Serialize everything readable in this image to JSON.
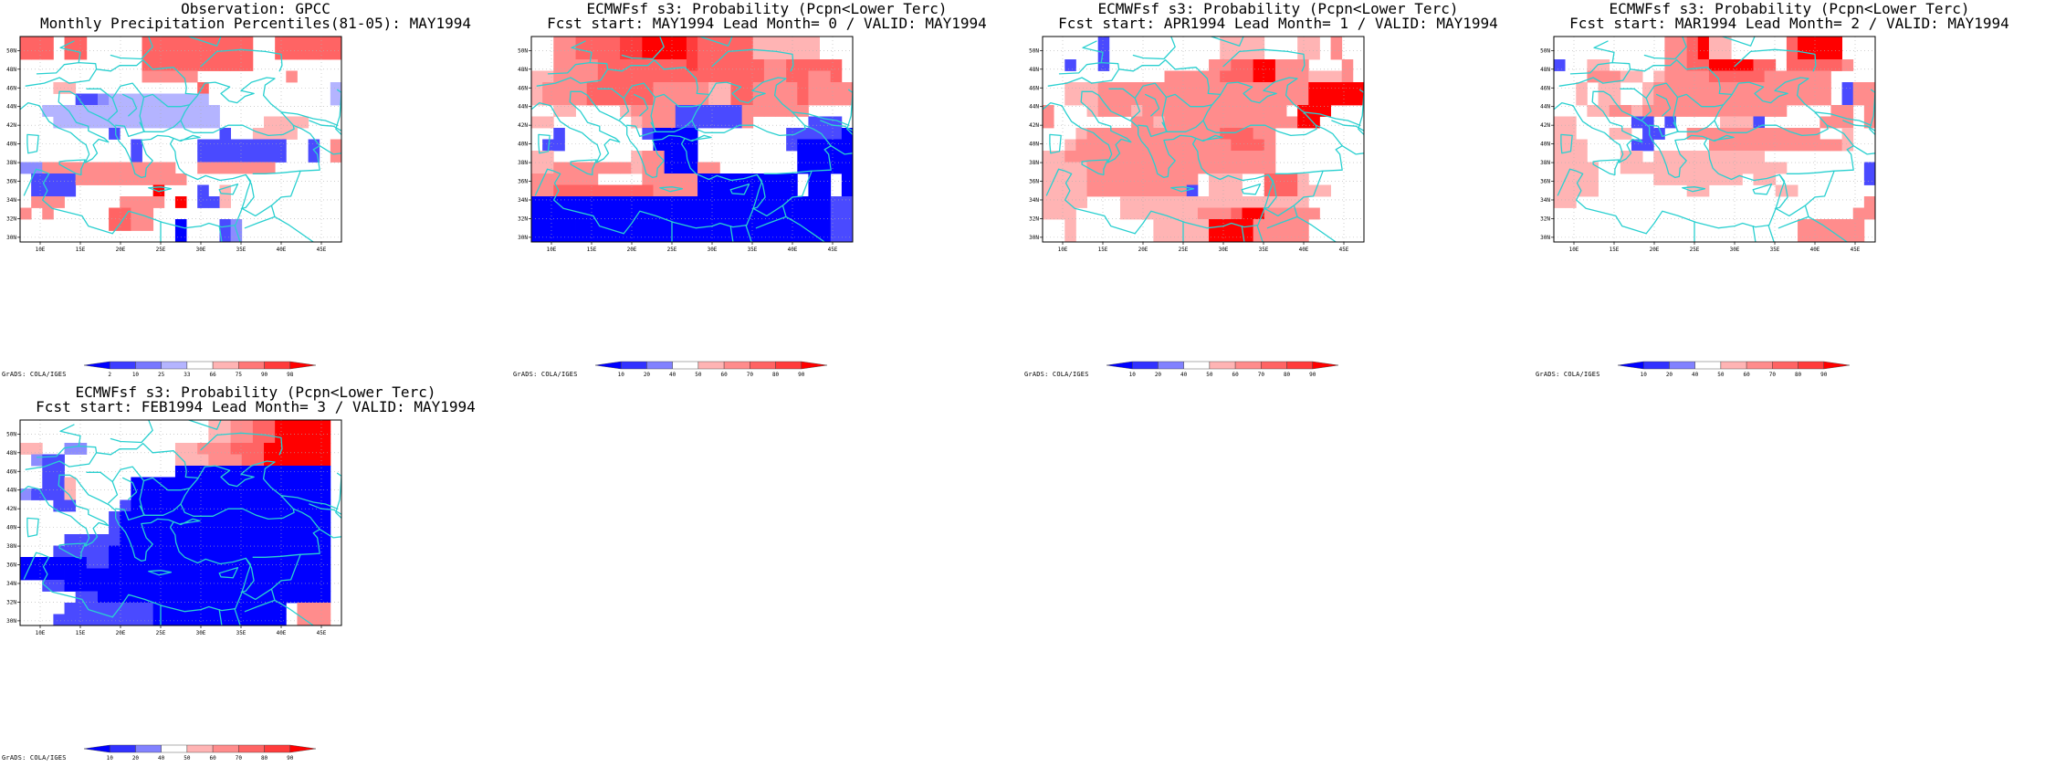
{
  "panels": [
    {
      "id": "obs",
      "title1": "Observation: GPCC",
      "title2": "Monthly Precipitation Percentiles(81-05): MAY1994",
      "scale": "percentile"
    },
    {
      "id": "lead0",
      "title1": "ECMWFsf s3: Probability (Pcpn<Lower Terc)",
      "title2": "Fcst start: MAY1994  Lead Month= 0 / VALID: MAY1994",
      "scale": "probability"
    },
    {
      "id": "lead1",
      "title1": "ECMWFsf s3: Probability (Pcpn<Lower Terc)",
      "title2": "Fcst start: APR1994  Lead Month= 1 / VALID: MAY1994",
      "scale": "probability"
    },
    {
      "id": "lead2",
      "title1": "ECMWFsf s3: Probability (Pcpn<Lower Terc)",
      "title2": "Fcst start: MAR1994  Lead Month= 2 / VALID: MAY1994",
      "scale": "probability"
    },
    {
      "id": "lead3",
      "title1": "ECMWFsf s3: Probability (Pcpn<Lower Terc)",
      "title2": "Fcst start: FEB1994  Lead Month= 3 / VALID: MAY1994",
      "scale": "probability"
    }
  ],
  "credit": "GrADS: COLA/IGES",
  "map": {
    "lon_range": [
      7.5,
      47.5
    ],
    "lat_range": [
      29.5,
      51.5
    ],
    "lon_ticks": [
      "10E",
      "15E",
      "20E",
      "25E",
      "30E",
      "35E",
      "40E",
      "45E"
    ],
    "lat_ticks": [
      "30N",
      "32N",
      "34N",
      "36N",
      "38N",
      "40N",
      "42N",
      "44N",
      "46N",
      "48N",
      "50N"
    ],
    "grid_lines": "dotted"
  },
  "colorbars": {
    "percentile": {
      "labels": [
        "2",
        "10",
        "25",
        "33",
        "66",
        "75",
        "90",
        "98"
      ],
      "colors": [
        "#0000ff",
        "#3c3cff",
        "#7878ff",
        "#b4b4ff",
        "#ffffff",
        "#ffb4b4",
        "#ff7878",
        "#ff3c3c",
        "#ff0000"
      ]
    },
    "probability": {
      "labels": [
        "10",
        "20",
        "40",
        "50",
        "60",
        "70",
        "80",
        "90"
      ],
      "colors": [
        "#0000ff",
        "#3232ff",
        "#8282ff",
        "#ffffff",
        "#ffb4b4",
        "#ff8c8c",
        "#ff6464",
        "#ff3c3c",
        "#ff0000"
      ]
    }
  },
  "colors": {
    "coast": "#2ad0d0",
    "grid": "#b0b0b0"
  },
  "cell_colors": {
    "B": "#0000ff",
    "b": "#4a4aff",
    "l": "#8c8cff",
    "v": "#b4b4ff",
    ".": "#ffffff",
    "p": "#ffb4b4",
    "q": "#ff8c8c",
    "r": "#ff6464",
    "s": "#ff3c3c",
    "R": "#ff0000"
  },
  "grids": {
    "obs": [
      "rrr.rr.....rrrrrrrrrr..rrrrrr",
      "rrr.rr.....rrrrrrrrrr..rrrrrr",
      "...........rrrrrrrrrr........",
      "...........qqqqq........q....",
      "...pp...........r...........v",
      ".....bblvvvvvvvvv...........v",
      "..vvvvvvvvvvvvvvvv..........",
      "...vvvvvvvvvvvvvvv....pppp...",
      "........b.........b..pppp....",
      "..........b.....bbbbbbbb..b.q",
      "..........b.....bbbbbbbb..b.q",
      "llqqqqqqqqqqqq..qqqqqqq......",
      ".bbbbqqqqqqqqqq..............",
      ".bbbb.......R...b.p..........",
      ".qqq.....qqqq.R.bbp..........",
      "q.q.....rrqq.................",
      "........rrqq..B...bl.........",
      "..............B...bl........."
    ],
    "lead0": [
      "..qqrrrrssRRRRsrrrrrpppppp...",
      "..qqrrrrssRRRRsrrrrrpppppp...",
      "..qqqqrrrrrrrrsrrrrrrqqrrrrr.",
      "ppqqqqrrrrrrrrrrrrrrrqqrrqqr.",
      "pqqqqrrrrrrqqqqqpprrqqqqrqqqq",
      "pqqqqrrrrrrqqqqqpprrqqqqrqqqq",
      "..pp....pqqqqbbbbbbqqqqqq....",
      "pp.......pqqqbbbbbbq.....bbb.",
      "..b.......bBBBB........bbbbbB",
      ".bb........BBBB........bBBBBB",
      "pp.......pqqBBB.........BBBBB",
      "ppqqqqqqqpqqBBBqq.......BBBBB",
      "qqqqqq....qqqqqBBBBBBBBB.BB.B",
      "qqrrrrrrrrrqqqqBBBBBBBBB.BB.B",
      "BBBBBBBBBBBBBBBBBBBBBBBBBBBbb",
      "BBBBBBBBBBBBBBBBBBBBBBBBBBBbb",
      "BBBBBBBBBBBBBBBBBBBBBBBBBBBbb",
      "BBBBBBBBBBBBBBBBBBBBBBBBBBBbb"
    ],
    "lead1": [
      ".....b..........pppp...pp.q..",
      ".....b..........pppp...pp.q..",
      "..b..b.........qqrrRRqqq...q.",
      "...........qqqqqrrrRRqqqpppq.",
      "..pppqqqqqqqqqqqqqqqqqqqRRRRR",
      "..pppqqqqqqqqqqqqqqqqqqqRRRRR",
      "q...pqqqpqqqqqqqqqqqqq.RRR...",
      "q.......qqpqqqqqqqqqqqqRR....",
      "...pqqqqqqqqqqqqrrrqq.......",
      "..pqqqqqqqqqqqqqqrrrq.......",
      "ppqqqqqqqqqqqqqqqqqqq.......",
      "ppppqqqqqqqqqqqqqqqqq.......",
      "ppppqqqqqqqqqq.ppp..rrrp....",
      "ppppqqqqqqqqqb.ppp..rrrppp..",
      "pppp...ppppppppppppppppp.....",
      "ppp....pppppppqqqrRRqqqqq....",
      "..p.......pppppRRRRqqqqq.....",
      "..p.......pppppRRRRqqqqq....."
    ],
    "lead2": [
      "..........qqrRpp.....rRRRR...",
      "..........qqrRpp.....rRRRR...",
      "b..pp.....qqrrRRRRrr.rrrrrq..",
      "...qqqpp.pqqqqrrrrrqqqqqq....",
      "..p.pp..pqqqqqqqqqqqqqqqq.bqq",
      "..p.pp..pqqqqqqqqqqqqqqqq.bqq",
      "...ppqqpqqqqqqqqqqqqq....qq.q",
      "pp.....bb.b....pppb.....qqq.q",
      "pp...pp.bb..qqqqqqqqqqqq..p.",
      "ppp....bb.....qqqqqqqqqqqqp..",
      "ppp...pp.pppppppppp..........",
      "pppp..ppppppppppppppp.......b",
      "pppp.....pppppppp.pp........b",
      "pppp........pp......pp.......",
      "pp..........................q",
      "...........................qq",
      "......................qqqqqq",
      "......................qqqqqq"
    ],
    "lead3": [
      ".................ppqqrrRRRRR.",
      ".................ppqqrrRRRRR.",
      "pp..ll........ppqqqrrrRRRRRR",
      ".lbb..........pppqqqrrRRRRRR",
      "..bb..........BBBBBBBBBBBBBB",
      "..bbp.....BBBBBBBBBBBBBBBBBB",
      "lbbbp.....BBBBBBBBBBBBBBBBBB",
      "...bb....bBBBBBBBBBBBBBBBBBB",
      "........bBBBBBBBBBBBBBBBBBBB",
      "........bBBBBBBBBBBBBBBBBBBB",
      "....bbbbbBBBBBBBBBBBBBBBBBBB",
      "...bbbbbBBBBBBBBBBBBBBBBBBBB",
      "BBBBBBbbBBBBBBBBBBBBBBBBBBBB",
      "BBBBBBBBBBBBBBBBBBBBBBBBBBBB",
      "..bbBBBBBBBBBBBBBBBBBBBBBBBB",
      ".....bbBBBBBBBBBBBBBBBBBBBBB",
      "....bbbbbbbbBBBBBBBBBBBB.qqq",
      "...bbbbbbbbbBBBBBBBBBBBB.qqq"
    ]
  }
}
